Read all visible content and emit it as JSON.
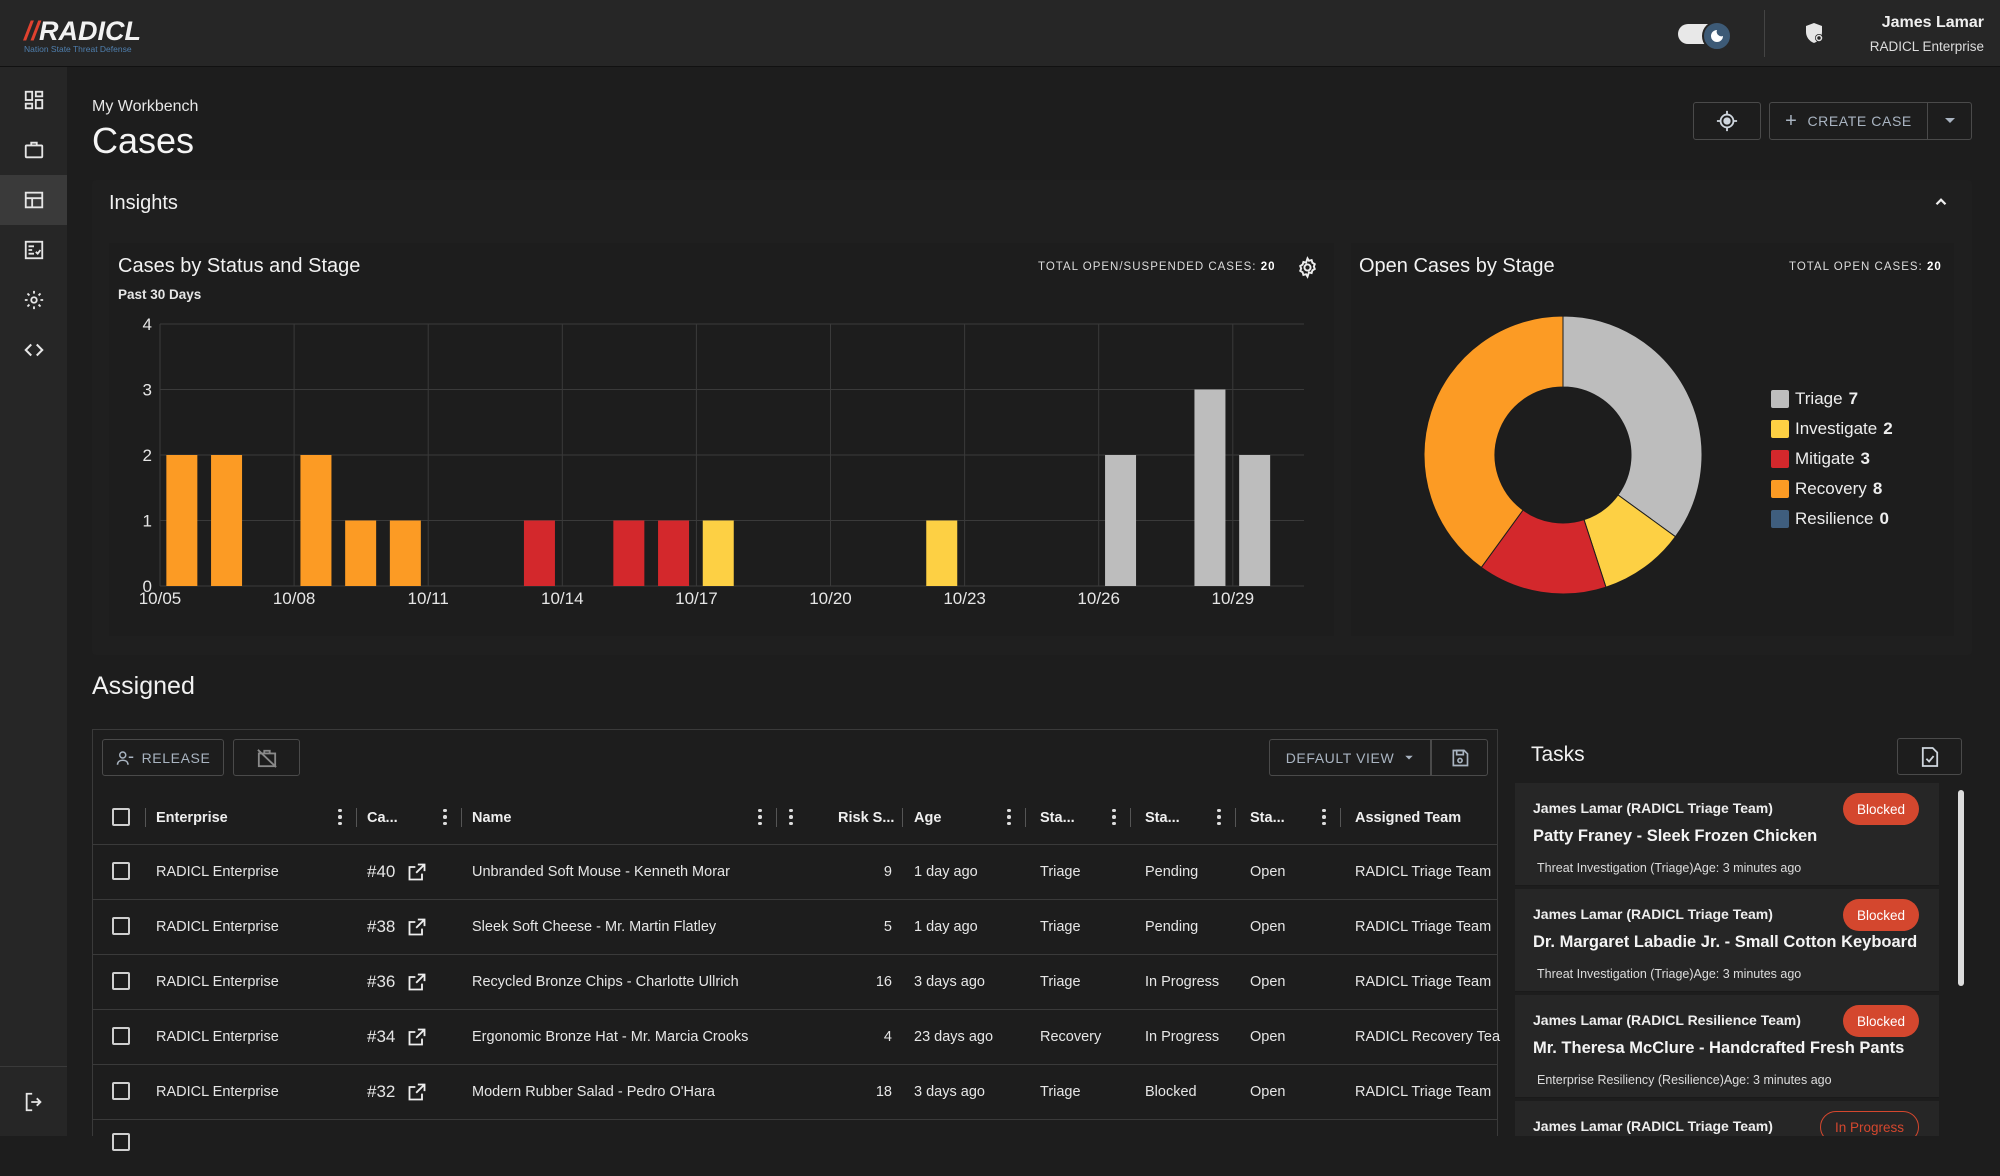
{
  "app": {
    "logo_text": "RADICL",
    "logo_bars": "//",
    "logo_tagline": "Nation State Threat Defense"
  },
  "header": {
    "user_name": "James Lamar",
    "user_org": "RADICL Enterprise"
  },
  "sidebar": {
    "items": [
      "dashboard-icon",
      "briefcase-icon",
      "cases-icon",
      "checklist-icon",
      "settings-icon",
      "code-icon",
      "logout-icon"
    ],
    "active": "cases-icon"
  },
  "page": {
    "breadcrumb": "My Workbench",
    "title": "Cases",
    "create_label": "CREATE CASE"
  },
  "insights": {
    "title": "Insights",
    "bar_card": {
      "title": "Cases by Status and Stage",
      "subtitle": "Past 30 Days",
      "total_label": "TOTAL OPEN/SUSPENDED CASES:",
      "total_value": "20"
    },
    "pie_card": {
      "title": "Open Cases by Stage",
      "total_label": "TOTAL OPEN CASES:",
      "total_value": "20"
    }
  },
  "chart_data": [
    {
      "type": "bar",
      "title": "Cases by Status and Stage",
      "subtitle": "Past 30 Days",
      "categories": [
        "10/05",
        "10/06",
        "10/07",
        "10/08",
        "10/09",
        "10/10",
        "10/11",
        "10/12",
        "10/13",
        "10/14",
        "10/15",
        "10/16",
        "10/17",
        "10/18",
        "10/19",
        "10/20",
        "10/21",
        "10/22",
        "10/23",
        "10/24",
        "10/25",
        "10/26",
        "10/27",
        "10/28",
        "10/29"
      ],
      "tick_labels": [
        "10/05",
        "10/08",
        "10/11",
        "10/14",
        "10/17",
        "10/20",
        "10/23",
        "10/26",
        "10/29"
      ],
      "ylim": [
        0,
        4
      ],
      "yticks": [
        "0",
        "1",
        "2",
        "3",
        "4"
      ],
      "series": [
        {
          "name": "Triage",
          "color": "#bdbdbd",
          "values": [
            0,
            0,
            0,
            0,
            0,
            0,
            0,
            0,
            0,
            0,
            0,
            0,
            0,
            0,
            0,
            0,
            0,
            0,
            0,
            0,
            0,
            2,
            0,
            3,
            2
          ]
        },
        {
          "name": "Investigate",
          "color": "#fdd044",
          "values": [
            0,
            0,
            0,
            0,
            0,
            0,
            0,
            0,
            0,
            0,
            0,
            0,
            1,
            0,
            0,
            0,
            0,
            1,
            0,
            0,
            0,
            0,
            0,
            0,
            0
          ]
        },
        {
          "name": "Mitigate",
          "color": "#d3282c",
          "values": [
            0,
            0,
            0,
            0,
            0,
            0,
            0,
            0,
            1,
            0,
            0,
            1,
            0,
            0,
            0,
            0,
            0,
            0,
            0,
            0,
            0,
            0,
            0,
            0,
            0
          ]
        },
        {
          "name": "Recovery",
          "color": "#fc9b24",
          "values": [
            2,
            2,
            0,
            2,
            1,
            1,
            0,
            0,
            0,
            0,
            0,
            0,
            0,
            0,
            0,
            0,
            0,
            0,
            0,
            0,
            0,
            0,
            0,
            0,
            0
          ]
        }
      ],
      "extra_bars": [
        {
          "category": "10/15",
          "series": "Mitigate",
          "value": 1
        }
      ],
      "grid": true
    },
    {
      "type": "pie",
      "title": "Open Cases by Stage",
      "donut": true,
      "slices": [
        {
          "label": "Triage",
          "value": 7,
          "color": "#bdbdbd"
        },
        {
          "label": "Investigate",
          "value": 2,
          "color": "#fdd044"
        },
        {
          "label": "Mitigate",
          "value": 3,
          "color": "#d3282c"
        },
        {
          "label": "Recovery",
          "value": 8,
          "color": "#fc9b24"
        },
        {
          "label": "Resilience",
          "value": 0,
          "color": "#3f5e7e"
        }
      ],
      "legend_position": "right"
    }
  ],
  "assigned": {
    "title": "Assigned",
    "release_label": "RELEASE",
    "view_label": "DEFAULT VIEW",
    "columns": [
      "Enterprise",
      "Ca...",
      "Name",
      "Risk S...",
      "Age",
      "Sta...",
      "Sta...",
      "Sta...",
      "Assigned Team"
    ],
    "rows": [
      {
        "enterprise": "RADICL Enterprise",
        "case": "#40",
        "name": "Unbranded Soft Mouse - Kenneth Morar",
        "risk": "9",
        "age": "1 day ago",
        "stage": "Triage",
        "status": "Pending",
        "state": "Open",
        "team": "RADICL Triage Team"
      },
      {
        "enterprise": "RADICL Enterprise",
        "case": "#38",
        "name": "Sleek Soft Cheese - Mr. Martin Flatley",
        "risk": "5",
        "age": "1 day ago",
        "stage": "Triage",
        "status": "Pending",
        "state": "Open",
        "team": "RADICL Triage Team"
      },
      {
        "enterprise": "RADICL Enterprise",
        "case": "#36",
        "name": "Recycled Bronze Chips - Charlotte Ullrich",
        "risk": "16",
        "age": "3 days ago",
        "stage": "Triage",
        "status": "In Progress",
        "state": "Open",
        "team": "RADICL Triage Team"
      },
      {
        "enterprise": "RADICL Enterprise",
        "case": "#34",
        "name": "Ergonomic Bronze Hat - Mr. Marcia Crooks",
        "risk": "4",
        "age": "23 days ago",
        "stage": "Recovery",
        "status": "In Progress",
        "state": "Open",
        "team": "RADICL Recovery Tea"
      },
      {
        "enterprise": "RADICL Enterprise",
        "case": "#32",
        "name": "Modern Rubber Salad - Pedro O'Hara",
        "risk": "18",
        "age": "3 days ago",
        "stage": "Triage",
        "status": "Blocked",
        "state": "Open",
        "team": "RADICL Triage Team"
      }
    ]
  },
  "tasks": {
    "title": "Tasks",
    "items": [
      {
        "owner": "James Lamar (RADICL Triage Team)",
        "name": "Patty Franey - Sleek Frozen Chicken",
        "meta": "Threat Investigation (Triage)Age: 3 minutes ago",
        "status": "Blocked"
      },
      {
        "owner": "James Lamar (RADICL Triage Team)",
        "name": "Dr. Margaret Labadie Jr. - Small Cotton Keyboard",
        "meta": "Threat Investigation (Triage)Age: 3 minutes ago",
        "status": "Blocked"
      },
      {
        "owner": "James Lamar (RADICL Resilience Team)",
        "name": "Mr. Theresa McClure - Handcrafted Fresh Pants",
        "meta": "Enterprise Resiliency (Resilience)Age: 3 minutes ago",
        "status": "Blocked"
      },
      {
        "owner": "James Lamar (RADICL Triage Team)",
        "name": "",
        "meta": "",
        "status": "In Progress"
      }
    ]
  }
}
